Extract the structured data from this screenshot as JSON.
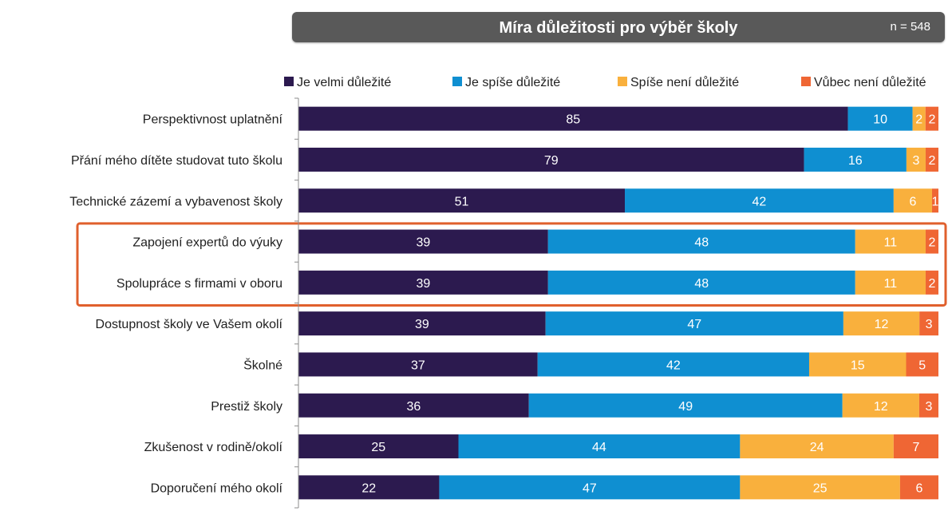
{
  "header": {
    "title": "Míra důležitosti pro výběr školy",
    "sample_size": "n = 548"
  },
  "chart_data": {
    "type": "bar",
    "orientation": "horizontal",
    "stacked": true,
    "title": "Míra důležitosti pro výběr školy",
    "categories": [
      "Perspektivnost uplatnění",
      "Přání mého dítěte studovat tuto školu",
      "Technické zázemí a vybavenost školy",
      "Zapojení expertů do výuky",
      "Spolupráce s firmami v oboru",
      "Dostupnost školy ve Vašem okolí",
      "Školné",
      "Prestiž školy",
      "Zkušenost v rodině/okolí",
      "Doporučení mého okolí"
    ],
    "series": [
      {
        "name": "Je velmi důležité",
        "color": "#2c1a4f",
        "label_color": "#ffffff",
        "values": [
          85,
          79,
          51,
          39,
          39,
          39,
          37,
          36,
          25,
          22
        ]
      },
      {
        "name": "Je spíše důležité",
        "color": "#0f8fd1",
        "label_color": "#ffffff",
        "values": [
          10,
          16,
          42,
          48,
          48,
          47,
          42,
          49,
          44,
          47
        ]
      },
      {
        "name": "Spíše není důležité",
        "color": "#f9b03d",
        "label_color": "#ffffff",
        "values": [
          2,
          3,
          6,
          11,
          11,
          12,
          15,
          12,
          24,
          25
        ]
      },
      {
        "name": "Vůbec není důležité",
        "color": "#ef6634",
        "label_color": "#ffffff",
        "values": [
          2,
          2,
          1,
          2,
          2,
          3,
          5,
          3,
          7,
          6
        ]
      }
    ],
    "unit": "%",
    "xlim": [
      0,
      100
    ],
    "legend": "top",
    "highlighted_categories": [
      "Zapojení expertů do výuky",
      "Spolupráce s firmami v oboru"
    ],
    "highlight_color": "#e0602d"
  }
}
